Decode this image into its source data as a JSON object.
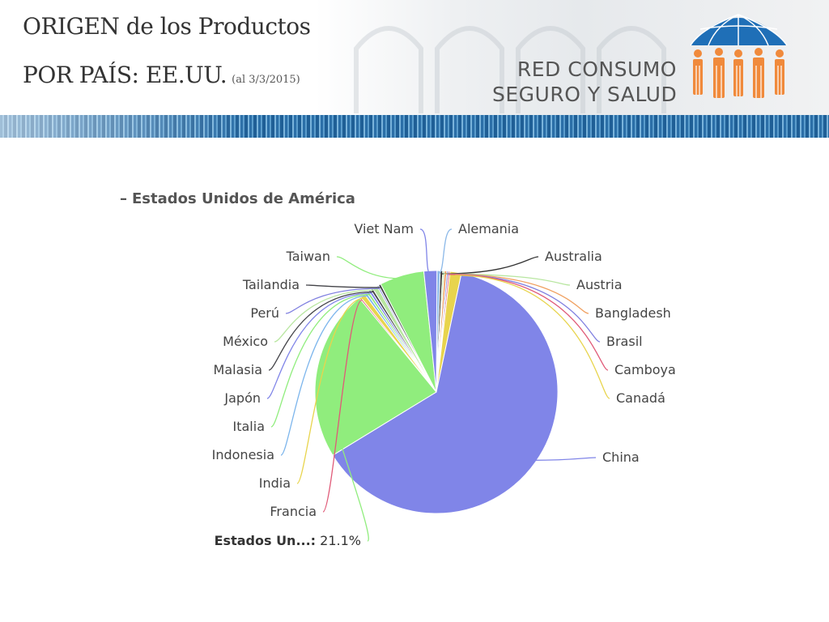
{
  "header": {
    "title_line1": "ORIGEN de los Productos",
    "title_line2": "POR PAÍS: EE.UU.",
    "date_note": "(al 3/3/2015)",
    "logo_text_line1": "RED CONSUMO",
    "logo_text_line2": "SEGURO Y SALUD",
    "logo_icon": "umbrella-people-logo-icon",
    "colors": {
      "logo_blue": "#1f6fb7",
      "logo_orange": "#f08a3c",
      "stripe_blue": "#2b6fa8"
    }
  },
  "chart_data": {
    "type": "pie",
    "title": "Estados Unidos de América",
    "title_prefix": "–",
    "slices": [
      {
        "label": "Alemania",
        "value": 0.4,
        "color": "#8bb8e8"
      },
      {
        "label": "Australia",
        "value": 0.3,
        "color": "#333333"
      },
      {
        "label": "Austria",
        "value": 0.2,
        "color": "#b8e6a0"
      },
      {
        "label": "Bangladesh",
        "value": 0.3,
        "color": "#f0a060"
      },
      {
        "label": "Brasil",
        "value": 0.2,
        "color": "#8080e0"
      },
      {
        "label": "Camboya",
        "value": 0.2,
        "color": "#e05a78"
      },
      {
        "label": "Canadá",
        "value": 1.4,
        "color": "#e8d44d"
      },
      {
        "label": "China",
        "value": 58.3,
        "color": "#8085e8"
      },
      {
        "label": "Estados Un...",
        "value": 21.1,
        "display": "Estados Un...: 21.1%",
        "color": "#90ed7d"
      },
      {
        "label": "Francia",
        "value": 0.2,
        "color": "#e05a78"
      },
      {
        "label": "India",
        "value": 0.6,
        "color": "#e8d44d"
      },
      {
        "label": "Indonesia",
        "value": 0.3,
        "color": "#7cb5ec"
      },
      {
        "label": "Italia",
        "value": 0.3,
        "color": "#90ed7d"
      },
      {
        "label": "Japón",
        "value": 0.3,
        "color": "#8085e8"
      },
      {
        "label": "Malasia",
        "value": 0.3,
        "color": "#434348"
      },
      {
        "label": "México",
        "value": 0.6,
        "color": "#b8e6a0"
      },
      {
        "label": "Perú",
        "value": 0.2,
        "color": "#8080e0"
      },
      {
        "label": "Tailandia",
        "value": 0.3,
        "color": "#434348"
      },
      {
        "label": "Taiwan",
        "value": 5.5,
        "color": "#90ed7d"
      },
      {
        "label": "Viet Nam",
        "value": 1.6,
        "color": "#8085e8"
      }
    ],
    "highlighted_label": "Estados Un..."
  }
}
